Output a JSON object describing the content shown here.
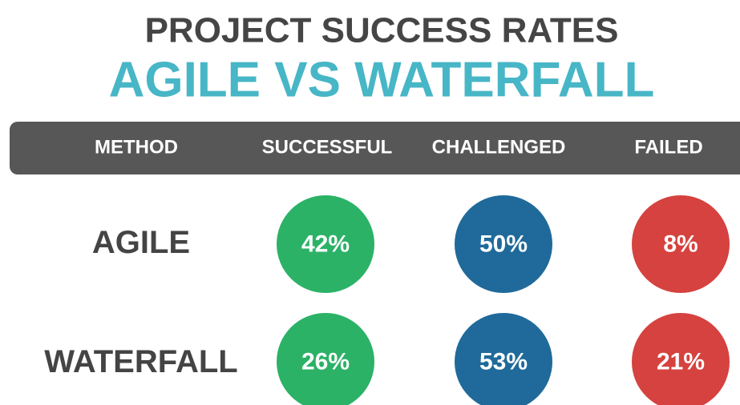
{
  "header": {
    "title": "PROJECT SUCCESS RATES",
    "subtitle": "AGILE VS WATERFALL"
  },
  "table": {
    "columns": [
      "METHOD",
      "SUCCESSFUL",
      "CHALLENGED",
      "FAILED"
    ],
    "rows": [
      [
        "AGILE",
        "42%",
        "50%",
        "8%"
      ],
      [
        "WATERFALL",
        "26%",
        "53%",
        "21%"
      ]
    ]
  }
}
